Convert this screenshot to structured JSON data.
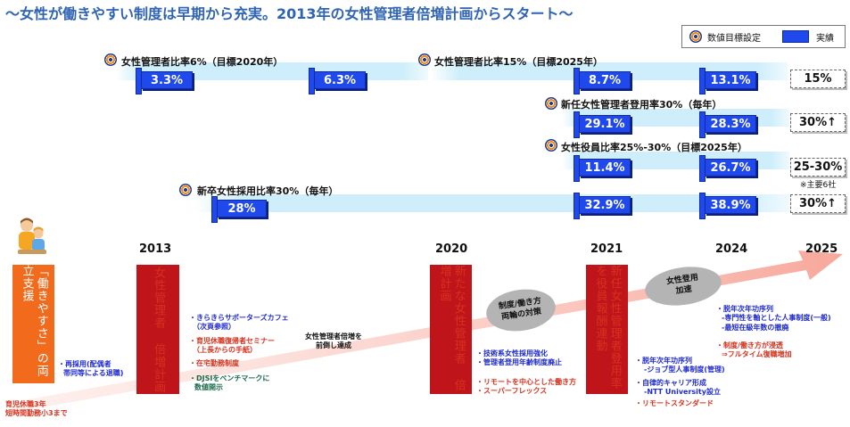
{
  "title": "～女性が働きやすい制度は早期から充実。2013年の女性管理者倍増計画からスタート～",
  "legend": {
    "target_label": "数値目標設定",
    "actual_label": "実績",
    "target_icon": "target-icon",
    "actual_icon": "blue-flag-icon"
  },
  "bands": {
    "mgr2020": {
      "label": "女性管理者比率6%（目標2020年）",
      "values": [
        "3.3%",
        "6.3%"
      ]
    },
    "mgr2025": {
      "label": "女性管理者比率15%（目標2025年）",
      "values": [
        "8.7%",
        "13.1%"
      ],
      "goal": "15%"
    },
    "newmgr": {
      "label": "新任女性管理者登用率30%（毎年）",
      "values": [
        "29.1%",
        "28.3%"
      ],
      "goal": "30%↑"
    },
    "officer": {
      "label": "女性役員比率25%-30%（目標2025年）",
      "values": [
        "11.4%",
        "26.7%"
      ],
      "goal": "25-30%",
      "note": "※主要6社"
    },
    "grad": {
      "label": "新卒女性採用比率30%（毎年）",
      "values": [
        "28%",
        "32.9%",
        "38.9%"
      ],
      "goal": "30%↑"
    }
  },
  "years": [
    "2013",
    "2020",
    "2021",
    "2024",
    "2025"
  ],
  "boxes": {
    "work": "「働きやすさ」の両立支援",
    "plan2013": "女性管理者 倍増計画",
    "plan2020": "新たな女性管理者 倍増計画",
    "plan2021": "新任女性管理者登用率を役員報酬連動"
  },
  "ellipses": {
    "reform": [
      "制度/働き方",
      "両輪の対策"
    ],
    "promote": [
      "女性登用",
      "加速"
    ]
  },
  "notes": {
    "leave": [
      "育児休職3年",
      "短時間勤務小3まで"
    ],
    "rehire": [
      "・再採用(配偶者",
      "帯同等による退職)"
    ],
    "cafe": [
      "・きらきらサポーターズカフェ",
      "（次頁参照）"
    ],
    "seminar": [
      "・育児休職復帰者セミナー",
      "（上長からの手紙）"
    ],
    "remote": [
      "・在宅勤務制度"
    ],
    "djsi": [
      "・DJSIをベンチマークに",
      "数値開示"
    ],
    "ahead": [
      "女性管理者倍増を",
      "前倒し達成"
    ],
    "tech": [
      "・技術系女性採用強化",
      "・管理者登用年齢制度廃止"
    ],
    "remote2": [
      "・リモートを中心とした働き方",
      "・スーパーフレックス"
    ],
    "jobtype": [
      "・脱年次年功序列",
      "-ジョブ型人事制度(管理)"
    ],
    "career": [
      "・自律的キャリア形成",
      "-NTT University設立"
    ],
    "remote3": [
      "・リモートスタンダード"
    ],
    "expert": [
      "・脱年次年功序列",
      "-専門性を軸とした人事制度(一般)",
      "-最短在級年数の撤廃"
    ],
    "rehire2": [
      "・制度/働き方が浸透",
      "⇒フルタイム復職増加"
    ]
  }
}
